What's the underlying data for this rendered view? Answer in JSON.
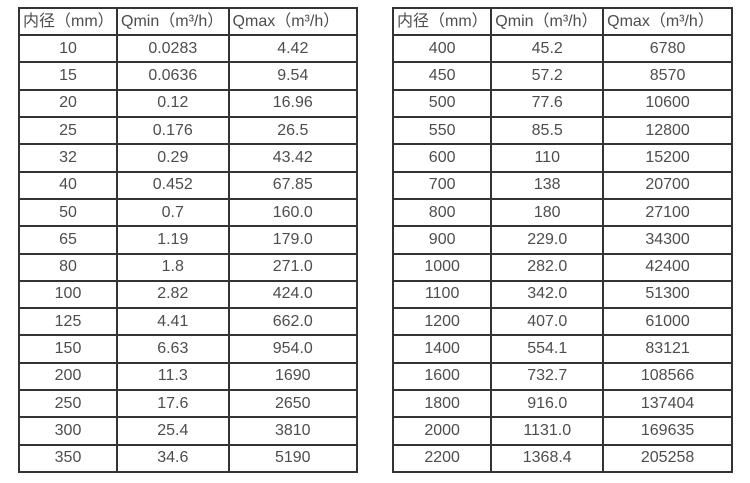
{
  "colors": {
    "background": "#ffffff",
    "table_border": "#333333",
    "text": "#4d4d4d"
  },
  "tables": [
    {
      "name": "small-diameter-flow-table",
      "headers": [
        "内径（mm）",
        "Qmin（m³/h）",
        "Qmax（m³/h）"
      ],
      "rows": [
        [
          "10",
          "0.0283",
          "4.42"
        ],
        [
          "15",
          "0.0636",
          "9.54"
        ],
        [
          "20",
          "0.12",
          "16.96"
        ],
        [
          "25",
          "0.176",
          "26.5"
        ],
        [
          "32",
          "0.29",
          "43.42"
        ],
        [
          "40",
          "0.452",
          "67.85"
        ],
        [
          "50",
          "0.7",
          "160.0"
        ],
        [
          "65",
          "1.19",
          "179.0"
        ],
        [
          "80",
          "1.8",
          "271.0"
        ],
        [
          "100",
          "2.82",
          "424.0"
        ],
        [
          "125",
          "4.41",
          "662.0"
        ],
        [
          "150",
          "6.63",
          "954.0"
        ],
        [
          "200",
          "11.3",
          "1690"
        ],
        [
          "250",
          "17.6",
          "2650"
        ],
        [
          "300",
          "25.4",
          "3810"
        ],
        [
          "350",
          "34.6",
          "5190"
        ]
      ]
    },
    {
      "name": "large-diameter-flow-table",
      "headers": [
        "内径（mm）",
        "Qmin（m³/h）",
        "Qmax（m³/h）"
      ],
      "rows": [
        [
          "400",
          "45.2",
          "6780"
        ],
        [
          "450",
          "57.2",
          "8570"
        ],
        [
          "500",
          "77.6",
          "10600"
        ],
        [
          "550",
          "85.5",
          "12800"
        ],
        [
          "600",
          "110",
          "15200"
        ],
        [
          "700",
          "138",
          "20700"
        ],
        [
          "800",
          "180",
          "27100"
        ],
        [
          "900",
          "229.0",
          "34300"
        ],
        [
          "1000",
          "282.0",
          "42400"
        ],
        [
          "1100",
          "342.0",
          "51300"
        ],
        [
          "1200",
          "407.0",
          "61000"
        ],
        [
          "1400",
          "554.1",
          "83121"
        ],
        [
          "1600",
          "732.7",
          "108566"
        ],
        [
          "1800",
          "916.0",
          "137404"
        ],
        [
          "2000",
          "1131.0",
          "169635"
        ],
        [
          "2200",
          "1368.4",
          "205258"
        ]
      ]
    }
  ]
}
